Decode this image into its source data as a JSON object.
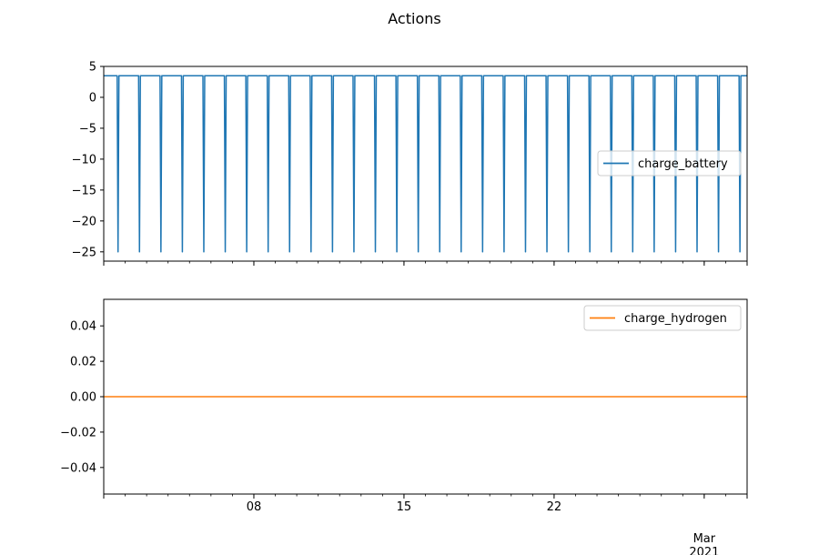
{
  "title": "Actions",
  "colors": {
    "battery": "#1f77b4",
    "hydrogen": "#ff7f0e"
  },
  "chart_data": [
    {
      "type": "line",
      "grid": false,
      "legend_position": "center-right",
      "x_range": [
        "2021-02-01T00:00",
        "2021-03-03T00:00"
      ],
      "ylim": [
        -26.5,
        5
      ],
      "y_ticks": [
        5,
        0,
        -5,
        -10,
        -15,
        -20,
        -25
      ],
      "y_tick_labels": [
        "5",
        "0",
        "−5",
        "−10",
        "−15",
        "−20",
        "−25"
      ],
      "x_tick_labels_shown": false,
      "series": [
        {
          "name": "charge_battery",
          "color": "#1f77b4",
          "pattern": "daily",
          "high_value": 3.5,
          "low_value": -25,
          "low_times": [
            "2021-02-01T16:00",
            "2021-02-02T16:00",
            "2021-02-03T16:00",
            "2021-02-04T16:00",
            "2021-02-05T16:00",
            "2021-02-06T16:00",
            "2021-02-07T16:00",
            "2021-02-08T16:00",
            "2021-02-09T16:00",
            "2021-02-10T16:00",
            "2021-02-11T16:00",
            "2021-02-12T16:00",
            "2021-02-13T16:00",
            "2021-02-14T16:00",
            "2021-02-15T16:00",
            "2021-02-16T16:00",
            "2021-02-17T16:00",
            "2021-02-18T16:00",
            "2021-02-19T16:00",
            "2021-02-20T16:00",
            "2021-02-21T16:00",
            "2021-02-22T16:00",
            "2021-02-23T16:00",
            "2021-02-24T16:00",
            "2021-02-25T16:00",
            "2021-02-26T16:00",
            "2021-02-27T16:00",
            "2021-02-28T16:00",
            "2021-03-01T16:00",
            "2021-03-02T16:00"
          ]
        }
      ]
    },
    {
      "type": "line",
      "grid": false,
      "legend_position": "top-right",
      "x_range": [
        "2021-02-01T00:00",
        "2021-03-03T00:00"
      ],
      "ylim": [
        -0.055,
        0.055
      ],
      "y_ticks": [
        0.04,
        0.02,
        0.0,
        -0.02,
        -0.04
      ],
      "y_tick_labels": [
        "0.04",
        "0.02",
        "0.00",
        "−0.02",
        "−0.04"
      ],
      "x_tick_labels": [
        {
          "date": "2021-02-08",
          "label": "08"
        },
        {
          "date": "2021-02-15",
          "label": "15"
        },
        {
          "date": "2021-02-22",
          "label": "22"
        },
        {
          "date": "2021-03-01",
          "label": "Mar\n2021"
        }
      ],
      "series": [
        {
          "name": "charge_hydrogen",
          "color": "#ff7f0e",
          "x": [
            "2021-02-01T00:00",
            "2021-03-03T00:00"
          ],
          "y": [
            0,
            0
          ]
        }
      ]
    }
  ]
}
